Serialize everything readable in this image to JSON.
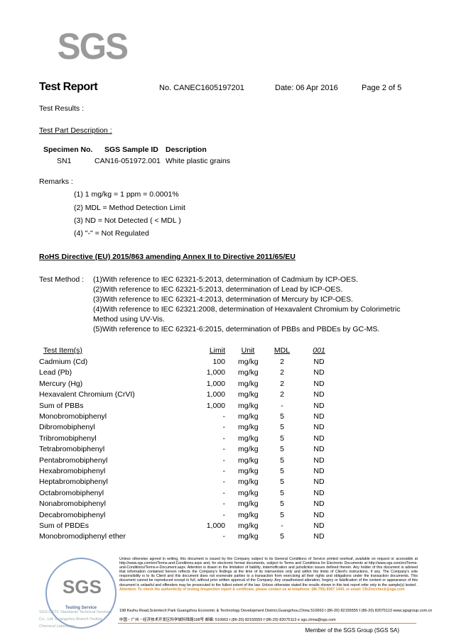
{
  "header": {
    "logo": "SGS",
    "title": "Test Report",
    "report_no": "No. CANEC1605197201",
    "date": "Date: 06 Apr 2016",
    "page": "Page 2 of 5"
  },
  "test_results_label": "Test Results :",
  "part_desc_label": "Test Part Description :",
  "specimen": {
    "headers": [
      "Specimen No.",
      "SGS Sample ID",
      "Description"
    ],
    "row": [
      "SN1",
      "CAN16-051972.001",
      "White plastic grains"
    ]
  },
  "remarks": {
    "label": "Remarks :",
    "items": [
      "(1) 1 mg/kg = 1 ppm = 0.0001%",
      "(2) MDL = Method Detection Limit",
      "(3) ND = Not Detected ( < MDL )",
      "(4) \"-\" = Not Regulated"
    ]
  },
  "directive": "RoHS Directive (EU) 2015/863 amending Annex II to Directive 2011/65/EU",
  "method": {
    "label": "Test Method :",
    "lines": [
      "(1)With reference to IEC 62321-5:2013, determination of Cadmium by ICP-OES.",
      "(2)With reference to IEC 62321-5:2013, determination of Lead by ICP-OES.",
      "(3)With reference to IEC 62321-4:2013, determination of Mercury by ICP-OES.",
      "(4)With reference to IEC 62321:2008, determination of Hexavalent Chromium by Colorimetric",
      "Method using UV-Vis.",
      "(5)With reference to IEC 62321-6:2015, determination of PBBs and PBDEs by GC-MS."
    ]
  },
  "table": {
    "headers": [
      "Test Item(s)",
      "Limit",
      "Unit",
      "MDL",
      "001"
    ],
    "rows": [
      [
        "Cadmium (Cd)",
        "100",
        "mg/kg",
        "2",
        "ND"
      ],
      [
        "Lead (Pb)",
        "1,000",
        "mg/kg",
        "2",
        "ND"
      ],
      [
        "Mercury (Hg)",
        "1,000",
        "mg/kg",
        "2",
        "ND"
      ],
      [
        "Hexavalent Chromium (CrVI)",
        "1,000",
        "mg/kg",
        "2",
        "ND"
      ],
      [
        "Sum of PBBs",
        "1,000",
        "mg/kg",
        "-",
        "ND"
      ],
      [
        "Monobromobiphenyl",
        "-",
        "mg/kg",
        "5",
        "ND"
      ],
      [
        "Dibromobiphenyl",
        "-",
        "mg/kg",
        "5",
        "ND"
      ],
      [
        "Tribromobiphenyl",
        "-",
        "mg/kg",
        "5",
        "ND"
      ],
      [
        "Tetrabromobiphenyl",
        "-",
        "mg/kg",
        "5",
        "ND"
      ],
      [
        "Pentabromobiphenyl",
        "-",
        "mg/kg",
        "5",
        "ND"
      ],
      [
        "Hexabromobiphenyl",
        "-",
        "mg/kg",
        "5",
        "ND"
      ],
      [
        "Heptabromobiphenyl",
        "-",
        "mg/kg",
        "5",
        "ND"
      ],
      [
        "Octabromobiphenyl",
        "-",
        "mg/kg",
        "5",
        "ND"
      ],
      [
        "Nonabromobiphenyl",
        "-",
        "mg/kg",
        "5",
        "ND"
      ],
      [
        "Decabromobiphenyl",
        "-",
        "mg/kg",
        "5",
        "ND"
      ],
      [
        "Sum of PBDEs",
        "1,000",
        "mg/kg",
        "-",
        "ND"
      ],
      [
        "Monobromodiphenyl ether",
        "-",
        "mg/kg",
        "5",
        "ND"
      ]
    ]
  },
  "footer": {
    "disclaimer": "Unless otherwise agreed in writing, this document is issued by the Company subject to its General Conditions of Service printed overleaf, available on request or accessible at http://www.sgs.com/en/Terms-and-Conditions.aspx and, for electronic format documents, subject to Terms and Conditions for Electronic Documents at http://www.sgs.com/en/Terms-and-Conditions/Terms-e-Document.aspx. Attention is drawn to the limitation of liability, indemnification and jurisdiction issues defined therein. Any holder of this document is advised that information contained hereon reflects the Company's findings at the time of its intervention only and within the limits of Client's instructions, if any. The Company's sole responsibility is to its Client and this document does not exonerate parties to a transaction from exercising all their rights and obligations under the transaction documents. This document cannot be reproduced except in full, without prior written approval of the Company. Any unauthorized alteration, forgery or falsification of the content or appearance of this document is unlawful and offenders may be prosecuted to the fullest extent of the law. Unless otherwise stated the results shown in this test report refer only to the sample(s) tested .",
    "attention": "Attention: To check the authenticity of testing /inspection report & certificate, please contact us at telephone: (86-755) 8307 1443, or email: CN.Doccheck@sgs.com",
    "address_en": "198 Kezhu Road,Scientech Park Guangzhou Economic & Technology Development District,Guangzhou,China 510663   t (86-20) 82155555   f (86-20) 82075113   www.sgsgroup.com.cn",
    "address_cn": "中国・广州・经济技术开发区科学城科珠路198号        邮编: 510663   t (86-20) 82155555   f (86-20) 82075113   e sgs.china@sgs.com",
    "seal_logo": "SGS",
    "seal_text": "Testing Service",
    "lab": "SGS-CSTC Standards Technical Services Co., Ltd. Guangzhou Branch Testing Chemical Laboratory",
    "member": "Member of the SGS Group (SGS SA)"
  }
}
